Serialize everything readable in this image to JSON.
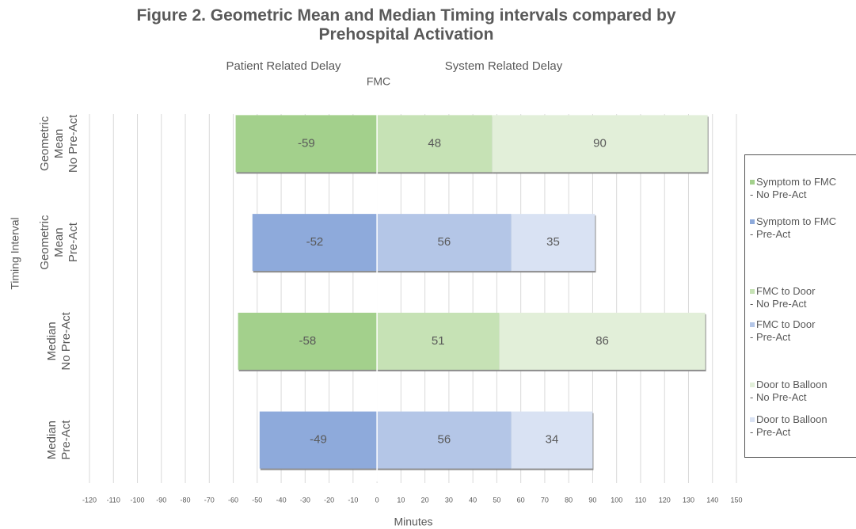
{
  "chart_data": {
    "type": "diverging-stacked-bar",
    "title": "Figure 2. Geometric Mean and Median Timing intervals compared by\nPrehospital Activation",
    "annotations": [
      "Patient Related Delay",
      "System Related Delay",
      "FMC"
    ],
    "x_label": "Minutes",
    "y_label": "Timing Interval",
    "categories": [
      [
        "Geometric",
        "Mean",
        "No Pre-Act"
      ],
      [
        "Geometric",
        "Mean",
        "Pre-Act"
      ],
      [
        "Median",
        "No Pre-Act"
      ],
      [
        "Median",
        "Pre-Act"
      ]
    ],
    "series": [
      {
        "name": "Symptom to FMC\n- No Pre-Act",
        "color": "#a3d08c",
        "values": [
          -59,
          null,
          -58,
          null
        ]
      },
      {
        "name": "Symptom to FMC\n- Pre-Act",
        "color": "#8eaadb",
        "values": [
          null,
          -52,
          null,
          -49
        ]
      },
      {
        "name": "FMC to Door\n- No Pre-Act",
        "color": "#c6e2b5",
        "values": [
          48,
          null,
          51,
          null
        ]
      },
      {
        "name": "FMC to Door\n- Pre-Act",
        "color": "#b4c6e7",
        "values": [
          null,
          56,
          null,
          56
        ]
      },
      {
        "name": "Door to Balloon\n- No Pre-Act",
        "color": "#e2efd9",
        "values": [
          90,
          null,
          86,
          null
        ]
      },
      {
        "name": "Door to Balloon\n- Pre-Act",
        "color": "#d9e2f3",
        "values": [
          null,
          35,
          null,
          34
        ]
      }
    ],
    "xlim": [
      -120,
      150
    ],
    "xticks": [
      -120,
      -110,
      -100,
      -90,
      -80,
      -70,
      -60,
      -50,
      -40,
      -30,
      -20,
      -10,
      0,
      10,
      20,
      30,
      40,
      50,
      60,
      70,
      80,
      90,
      100,
      110,
      120,
      130,
      140,
      150
    ],
    "grid": true,
    "legend": "right"
  }
}
